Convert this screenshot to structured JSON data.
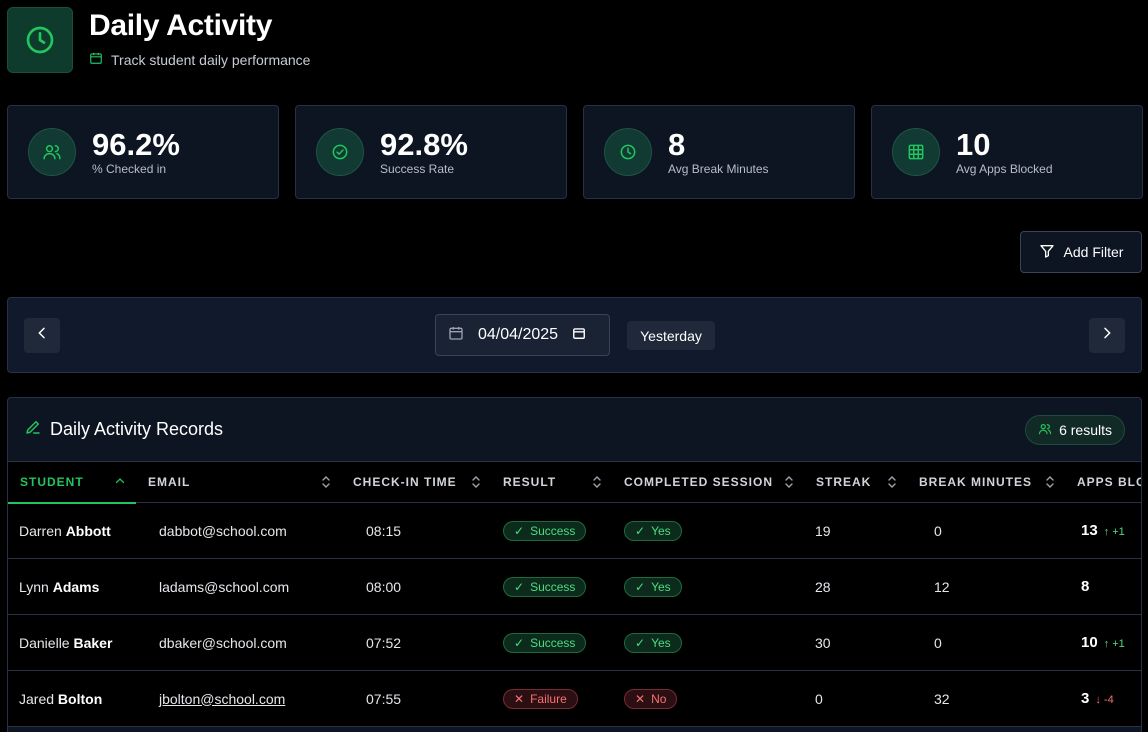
{
  "header": {
    "title": "Daily Activity",
    "subtitle": "Track student daily performance"
  },
  "stats": [
    {
      "value": "96.2%",
      "label": "% Checked in",
      "icon": "users-icon"
    },
    {
      "value": "92.8%",
      "label": "Success Rate",
      "icon": "check-circle-icon"
    },
    {
      "value": "8",
      "label": "Avg Break Minutes",
      "icon": "clock-icon"
    },
    {
      "value": "10",
      "label": "Avg Apps Blocked",
      "icon": "grid-icon"
    }
  ],
  "filter": {
    "label": "Add Filter"
  },
  "date_bar": {
    "date": "04/04/2025",
    "yesterday_label": "Yesterday"
  },
  "records": {
    "title": "Daily Activity Records",
    "results": "6 results",
    "columns": {
      "student": "STUDENT",
      "email": "EMAIL",
      "checkin": "CHECK-IN TIME",
      "result": "RESULT",
      "session": "COMPLETED SESSION",
      "streak": "STREAK",
      "breaks": "BREAK MINUTES",
      "apps": "APPS BLOCKED"
    },
    "rows": [
      {
        "first": "Darren",
        "last": "Abbott",
        "email": "dabbot@school.com",
        "checkin": "08:15",
        "result": "Success",
        "session": "Yes",
        "streak": "19",
        "breaks": "0",
        "apps": "13",
        "delta": "↑ +1"
      },
      {
        "first": "Lynn",
        "last": "Adams",
        "email": "ladams@school.com",
        "checkin": "08:00",
        "result": "Success",
        "session": "Yes",
        "streak": "28",
        "breaks": "12",
        "apps": "8",
        "delta": ""
      },
      {
        "first": "Danielle",
        "last": "Baker",
        "email": "dbaker@school.com",
        "checkin": "07:52",
        "result": "Success",
        "session": "Yes",
        "streak": "30",
        "breaks": "0",
        "apps": "10",
        "delta": "↑ +1"
      },
      {
        "first": "Jared",
        "last": "Bolton",
        "email": "jbolton@school.com",
        "checkin": "07:55",
        "result": "Failure",
        "session": "No",
        "streak": "0",
        "breaks": "32",
        "apps": "3",
        "delta": "↓ -4"
      }
    ]
  },
  "colors": {
    "accent": "#22c55e",
    "failure": "#f87171",
    "card": "#0d1422"
  }
}
